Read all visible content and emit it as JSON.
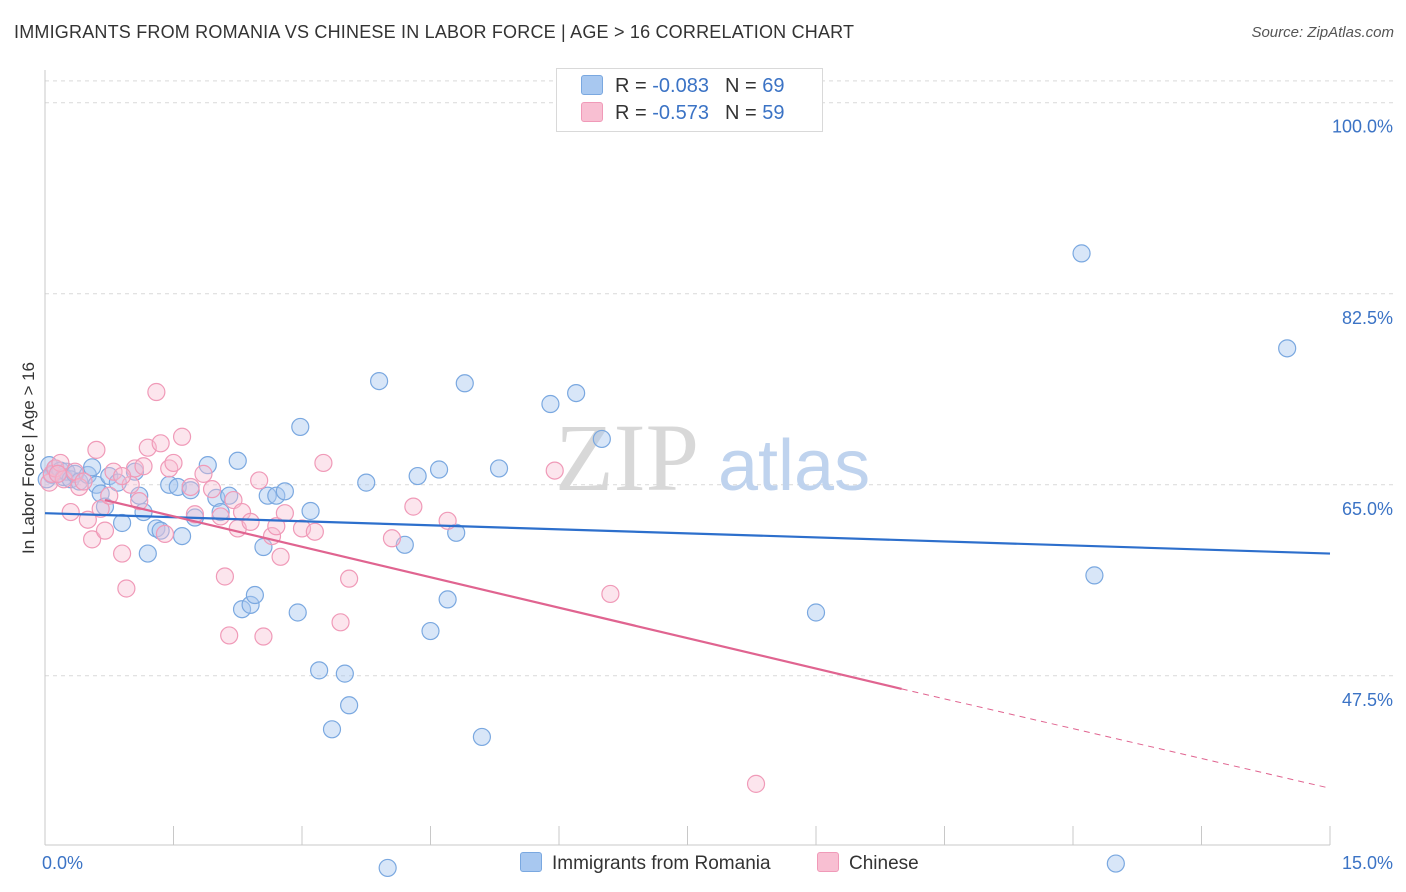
{
  "title": "IMMIGRANTS FROM ROMANIA VS CHINESE IN LABOR FORCE | AGE > 16 CORRELATION CHART",
  "source": "Source: ZipAtlas.com",
  "watermark": {
    "zip": "ZIP",
    "atlas": "atlas"
  },
  "legend": {
    "romania": {
      "r_label": "R =",
      "r_value": "-0.083",
      "n_label": "N =",
      "n_value": "69"
    },
    "chinese": {
      "r_label": "R =",
      "r_value": "-0.573",
      "n_label": "N =",
      "n_value": "59"
    }
  },
  "bottom_legend": {
    "romania": "Immigrants from Romania",
    "chinese": "Chinese"
  },
  "colors": {
    "romania_fill": "#a8c8f0",
    "romania_stroke": "#7aa8e0",
    "romania_line": "#2d6fcc",
    "chinese_fill": "#f8bfd2",
    "chinese_stroke": "#f09ab8",
    "chinese_line": "#e06490",
    "tick_text": "#3b73c5",
    "grid": "#d9d9d9"
  },
  "chart_data": {
    "type": "scatter",
    "title": "IMMIGRANTS FROM ROMANIA VS CHINESE IN LABOR FORCE | AGE > 16 CORRELATION CHART",
    "xlabel": "",
    "ylabel": "In Labor Force | Age > 16",
    "xlim": [
      0,
      15
    ],
    "ylim": [
      32.0,
      103.0
    ],
    "x_tick_labels": [
      "0.0%",
      "15.0%"
    ],
    "y_ticks": [
      47.5,
      65.0,
      82.5,
      100.0
    ],
    "y_tick_labels": [
      "47.5%",
      "65.0%",
      "82.5%",
      "100.0%"
    ],
    "series": [
      {
        "name": "Immigrants from Romania",
        "points": [
          [
            0.05,
            66.8
          ],
          [
            0.08,
            65.9
          ],
          [
            0.12,
            66.5
          ],
          [
            0.15,
            66.0
          ],
          [
            0.18,
            66.3
          ],
          [
            0.22,
            65.7
          ],
          [
            0.25,
            66.2
          ],
          [
            0.3,
            65.5
          ],
          [
            0.35,
            66.0
          ],
          [
            0.4,
            65.3
          ],
          [
            0.5,
            65.9
          ],
          [
            0.55,
            66.6
          ],
          [
            0.6,
            65.0
          ],
          [
            0.65,
            64.2
          ],
          [
            0.7,
            63.0
          ],
          [
            0.75,
            65.8
          ],
          [
            0.85,
            65.2
          ],
          [
            0.9,
            61.5
          ],
          [
            1.05,
            66.2
          ],
          [
            1.1,
            64.0
          ],
          [
            1.15,
            62.5
          ],
          [
            1.2,
            58.7
          ],
          [
            1.3,
            61.0
          ],
          [
            1.35,
            60.8
          ],
          [
            1.45,
            65.0
          ],
          [
            1.55,
            64.8
          ],
          [
            1.6,
            60.3
          ],
          [
            1.7,
            64.5
          ],
          [
            1.75,
            62.0
          ],
          [
            1.9,
            66.8
          ],
          [
            2.0,
            63.8
          ],
          [
            2.05,
            62.5
          ],
          [
            2.15,
            64.0
          ],
          [
            2.25,
            67.2
          ],
          [
            2.3,
            53.6
          ],
          [
            2.4,
            54.0
          ],
          [
            2.45,
            54.9
          ],
          [
            2.55,
            59.3
          ],
          [
            2.6,
            64.0
          ],
          [
            2.7,
            64.0
          ],
          [
            2.8,
            64.4
          ],
          [
            2.95,
            53.3
          ],
          [
            2.98,
            70.3
          ],
          [
            3.1,
            62.6
          ],
          [
            3.2,
            48.0
          ],
          [
            3.35,
            42.6
          ],
          [
            3.5,
            47.7
          ],
          [
            3.55,
            44.8
          ],
          [
            3.75,
            65.2
          ],
          [
            3.9,
            74.5
          ],
          [
            4.0,
            29.9
          ],
          [
            4.2,
            59.5
          ],
          [
            4.35,
            65.8
          ],
          [
            4.5,
            51.6
          ],
          [
            4.6,
            66.4
          ],
          [
            4.7,
            54.5
          ],
          [
            4.8,
            60.6
          ],
          [
            4.9,
            74.3
          ],
          [
            5.1,
            41.9
          ],
          [
            5.3,
            66.5
          ],
          [
            5.9,
            72.4
          ],
          [
            6.2,
            73.4
          ],
          [
            6.5,
            69.2
          ],
          [
            9.0,
            53.3
          ],
          [
            12.1,
            86.2
          ],
          [
            12.25,
            56.7
          ],
          [
            12.5,
            30.3
          ],
          [
            14.5,
            77.5
          ],
          [
            0.02,
            65.5
          ]
        ]
      },
      {
        "name": "Chinese",
        "points": [
          [
            0.05,
            65.2
          ],
          [
            0.08,
            66.0
          ],
          [
            0.12,
            66.5
          ],
          [
            0.18,
            67.0
          ],
          [
            0.22,
            65.5
          ],
          [
            0.3,
            62.5
          ],
          [
            0.35,
            66.2
          ],
          [
            0.4,
            64.8
          ],
          [
            0.45,
            65.3
          ],
          [
            0.5,
            61.8
          ],
          [
            0.55,
            60.0
          ],
          [
            0.6,
            68.2
          ],
          [
            0.65,
            62.8
          ],
          [
            0.7,
            60.8
          ],
          [
            0.75,
            64.0
          ],
          [
            0.8,
            66.2
          ],
          [
            0.9,
            58.7
          ],
          [
            0.95,
            55.5
          ],
          [
            1.0,
            65.0
          ],
          [
            1.05,
            66.5
          ],
          [
            1.1,
            63.5
          ],
          [
            1.15,
            66.7
          ],
          [
            1.2,
            68.4
          ],
          [
            1.3,
            73.5
          ],
          [
            1.35,
            68.8
          ],
          [
            1.4,
            60.5
          ],
          [
            1.45,
            66.5
          ],
          [
            1.5,
            67.0
          ],
          [
            1.6,
            69.4
          ],
          [
            1.7,
            64.8
          ],
          [
            1.75,
            62.3
          ],
          [
            1.85,
            66.0
          ],
          [
            1.95,
            64.6
          ],
          [
            2.05,
            62.1
          ],
          [
            2.1,
            56.6
          ],
          [
            2.15,
            51.2
          ],
          [
            2.2,
            63.6
          ],
          [
            2.25,
            61.0
          ],
          [
            2.3,
            62.5
          ],
          [
            2.4,
            61.6
          ],
          [
            2.5,
            65.4
          ],
          [
            2.55,
            51.1
          ],
          [
            2.65,
            60.3
          ],
          [
            2.7,
            61.2
          ],
          [
            2.75,
            58.4
          ],
          [
            2.8,
            62.4
          ],
          [
            3.0,
            61.0
          ],
          [
            3.15,
            60.7
          ],
          [
            3.25,
            67.0
          ],
          [
            3.45,
            52.4
          ],
          [
            3.55,
            56.4
          ],
          [
            4.05,
            60.1
          ],
          [
            4.3,
            63.0
          ],
          [
            4.7,
            61.7
          ],
          [
            5.95,
            66.3
          ],
          [
            6.6,
            55.0
          ],
          [
            8.3,
            37.6
          ],
          [
            0.15,
            66.0
          ],
          [
            0.9,
            65.8
          ]
        ]
      }
    ],
    "trend_lines": [
      {
        "series": "Immigrants from Romania",
        "x": [
          0.0,
          15.0
        ],
        "y": [
          62.4,
          58.7
        ],
        "style": "solid"
      },
      {
        "series": "Chinese",
        "x": [
          0.7,
          10.0
        ],
        "y": [
          63.6,
          46.3
        ],
        "style": "solid"
      },
      {
        "series": "Chinese",
        "x": [
          10.0,
          15.0
        ],
        "y": [
          46.3,
          37.2
        ],
        "style": "dashed"
      }
    ]
  }
}
